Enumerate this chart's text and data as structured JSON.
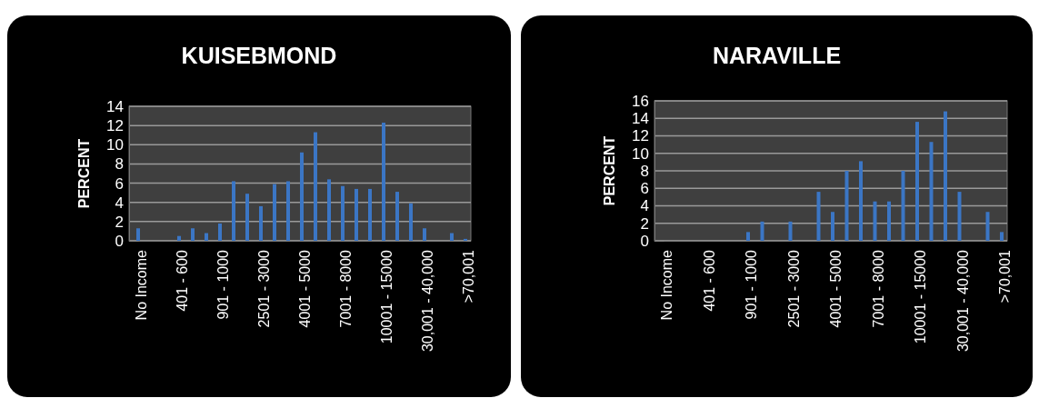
{
  "chart_data": [
    {
      "type": "bar",
      "title": "KUISEBMOND",
      "ylabel": "PERCENT",
      "categories": [
        "No Income",
        null,
        null,
        "401 - 600",
        null,
        null,
        "901 - 1000",
        null,
        null,
        "2501 - 3000",
        null,
        null,
        "4001 - 5000",
        null,
        null,
        "7001 - 8000",
        null,
        null,
        "10001 - 15000",
        null,
        null,
        "30,001 - 40,000",
        null,
        null,
        ">70,001"
      ],
      "values": [
        1.3,
        0,
        0,
        0.5,
        1.3,
        0.8,
        1.8,
        6.2,
        4.9,
        3.6,
        5.9,
        6.2,
        9.2,
        11.3,
        6.4,
        5.7,
        5.4,
        5.4,
        12.3,
        5.1,
        3.9,
        1.3,
        0,
        0.8,
        0.2
      ],
      "color": "#3b76c5",
      "ylim": [
        0,
        14
      ],
      "yticks": [
        0,
        2,
        4,
        6,
        8,
        10,
        12,
        14
      ],
      "grid": "y"
    },
    {
      "type": "bar",
      "title": "NARAVILLE",
      "ylabel": "PERCENT",
      "categories": [
        "No Income",
        null,
        null,
        "401 - 600",
        null,
        null,
        "901 - 1000",
        null,
        null,
        "2501 - 3000",
        null,
        null,
        "4001 - 5000",
        null,
        null,
        "7001 - 8000",
        null,
        null,
        "10001 - 15000",
        null,
        null,
        "30,001 - 40,000",
        null,
        null,
        ">70,001"
      ],
      "values": [
        0,
        0,
        0,
        0,
        0,
        0,
        1.0,
        2.2,
        0,
        2.2,
        0,
        5.6,
        3.3,
        8.0,
        9.1,
        4.5,
        4.5,
        8.0,
        13.6,
        11.3,
        14.8,
        5.6,
        0,
        3.3,
        1.0
      ],
      "color": "#3b76c5",
      "ylim": [
        0,
        16
      ],
      "yticks": [
        0,
        2,
        4,
        6,
        8,
        10,
        12,
        14,
        16
      ],
      "grid": "y"
    }
  ]
}
